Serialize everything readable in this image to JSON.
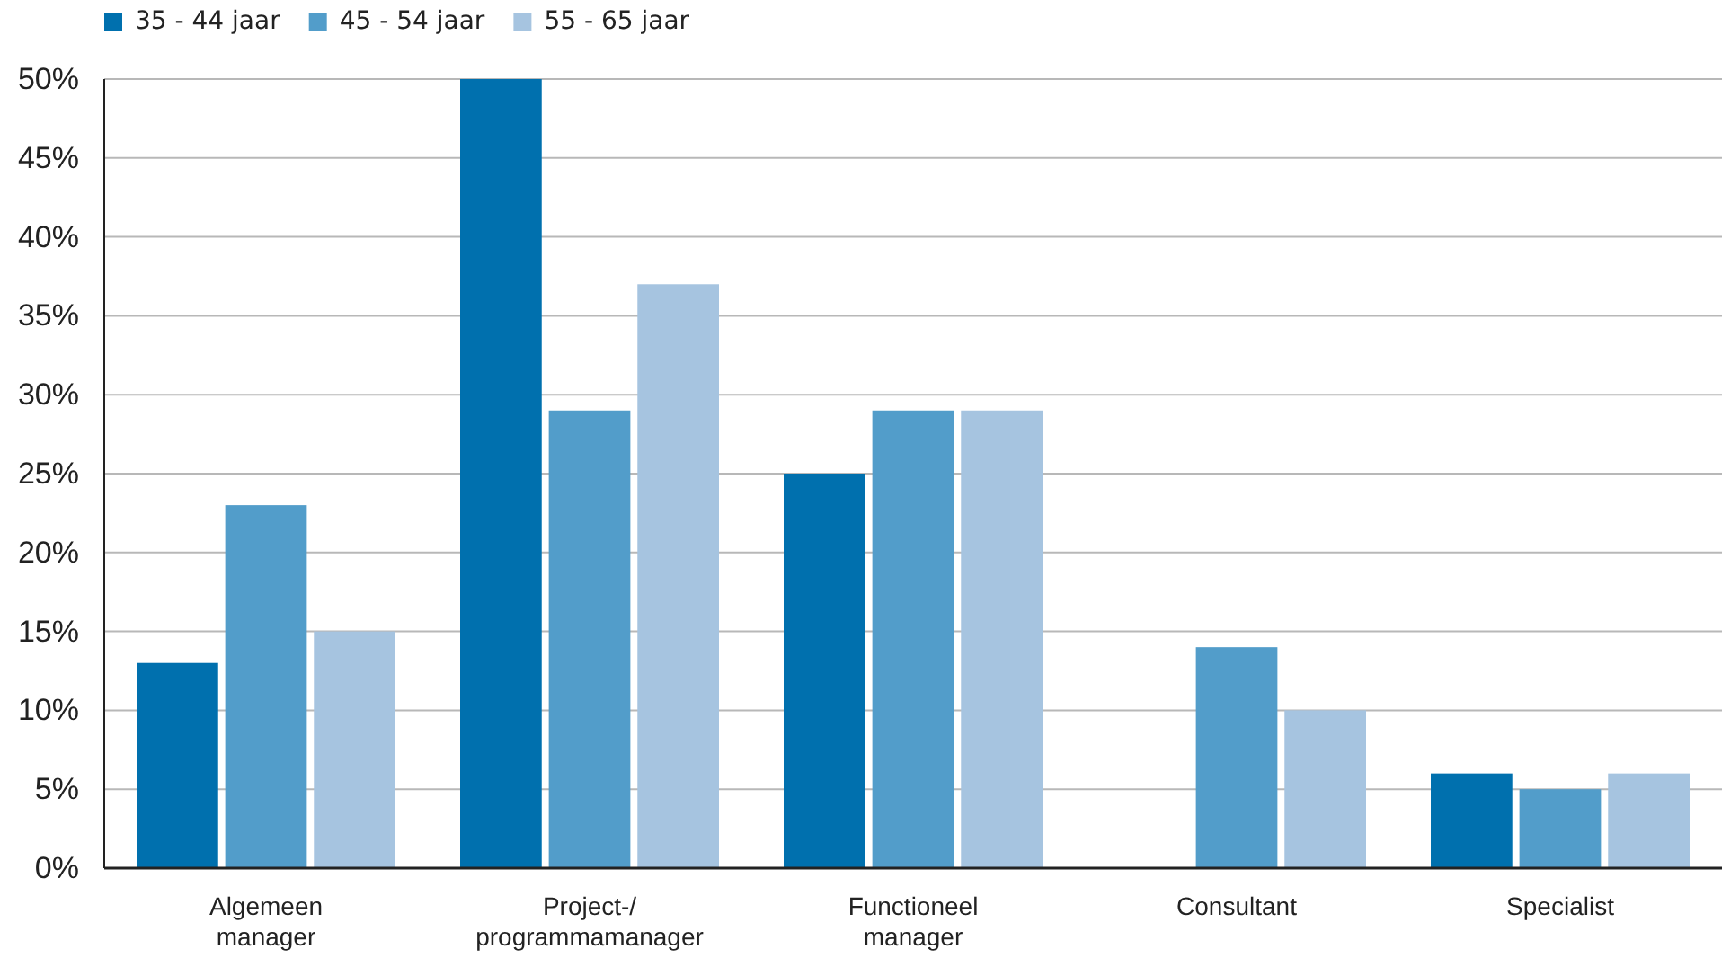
{
  "chart_data": {
    "type": "bar",
    "categories": [
      "Algemeen manager",
      "Project-/ programmamanager",
      "Functioneel manager",
      "Consultant",
      "Specialist"
    ],
    "series": [
      {
        "name": "35 - 44 jaar",
        "color": "#0070ae",
        "values": [
          13,
          50,
          25,
          0,
          6
        ]
      },
      {
        "name": "45 - 54 jaar",
        "color": "#529dca",
        "values": [
          23,
          29,
          29,
          14,
          5
        ]
      },
      {
        "name": "55 - 65 jaar",
        "color": "#a6c4e0",
        "values": [
          15,
          37,
          29,
          10,
          6
        ]
      }
    ],
    "ylim": [
      0,
      50
    ],
    "yticks": [
      {
        "value": 0,
        "label": "0%"
      },
      {
        "value": 5,
        "label": "5%"
      },
      {
        "value": 10,
        "label": "10%"
      },
      {
        "value": 15,
        "label": "15%"
      },
      {
        "value": 20,
        "label": "20%"
      },
      {
        "value": 25,
        "label": "25%"
      },
      {
        "value": 30,
        "label": "30%"
      },
      {
        "value": 35,
        "label": "35%"
      },
      {
        "value": 40,
        "label": "40%"
      },
      {
        "value": 45,
        "label": "45%"
      },
      {
        "value": 50,
        "label": "50%"
      }
    ],
    "grid": "y",
    "legend": "top left"
  }
}
